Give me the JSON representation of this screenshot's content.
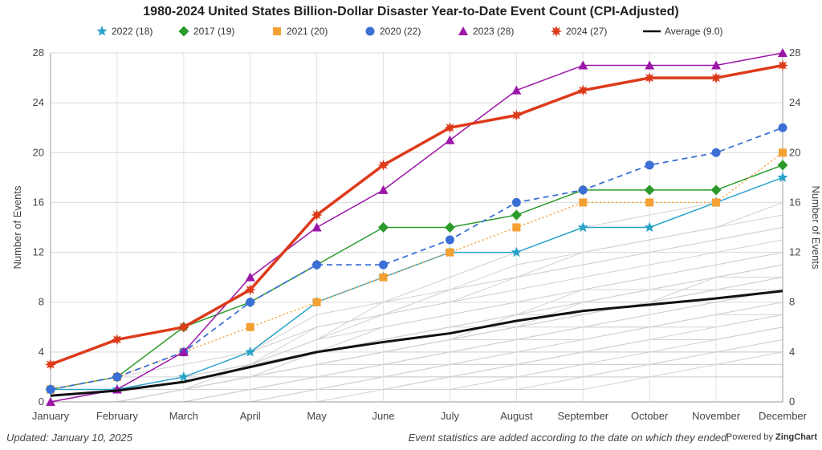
{
  "chart_data": {
    "type": "line",
    "title": "1980-2024 United States Billion-Dollar Disaster Year-to-Date Event Count (CPI-Adjusted)",
    "categories": [
      "January",
      "February",
      "March",
      "April",
      "May",
      "June",
      "July",
      "August",
      "September",
      "October",
      "November",
      "December"
    ],
    "ylabel": "Number of Events",
    "y2label": "Number of Events",
    "ylim": [
      0,
      28
    ],
    "yticks": [
      0,
      4,
      8,
      12,
      16,
      20,
      24,
      28
    ],
    "grid": true,
    "legend_position": "top",
    "series": [
      {
        "name": "2022 (18)",
        "color": "#2aa3c9",
        "marker": "star",
        "style": "solid",
        "width": 1.5,
        "values": [
          1,
          1,
          2,
          4,
          8,
          10,
          12,
          12,
          14,
          14,
          16,
          18
        ]
      },
      {
        "name": "2017 (19)",
        "color": "#2b9a2b",
        "marker": "diamond",
        "style": "solid",
        "width": 1.5,
        "values": [
          1,
          2,
          6,
          8,
          11,
          14,
          14,
          15,
          17,
          17,
          17,
          19
        ]
      },
      {
        "name": "2021 (20)",
        "color": "#f5a033",
        "marker": "square",
        "style": "dotted",
        "width": 1.5,
        "values": [
          1,
          2,
          4,
          6,
          8,
          10,
          12,
          14,
          16,
          16,
          16,
          20
        ]
      },
      {
        "name": "2020 (22)",
        "color": "#3b6fd6",
        "marker": "circle",
        "style": "dashed",
        "width": 1.8,
        "values": [
          1,
          2,
          4,
          8,
          11,
          11,
          13,
          16,
          17,
          19,
          20,
          22
        ]
      },
      {
        "name": "2023 (28)",
        "color": "#9c16a8",
        "marker": "triangle",
        "style": "solid",
        "width": 1.5,
        "values": [
          0,
          1,
          4,
          10,
          14,
          17,
          21,
          25,
          27,
          27,
          27,
          28
        ]
      },
      {
        "name": "2024 (27)",
        "color": "#dd3a1a",
        "marker": "burst",
        "style": "solid",
        "width": 3.5,
        "values": [
          3,
          5,
          6,
          9,
          15,
          19,
          22,
          23,
          25,
          26,
          26,
          27
        ]
      },
      {
        "name": "Average (9.0)",
        "color": "#111111",
        "marker": "none",
        "style": "solid",
        "width": 3,
        "values": [
          0.5,
          0.9,
          1.6,
          2.8,
          4.0,
          4.8,
          5.5,
          6.5,
          7.3,
          7.8,
          8.3,
          8.9
        ]
      }
    ],
    "background_series_color": "#d2d2d2",
    "background_series": [
      [
        0,
        0,
        1,
        2,
        3,
        4,
        5,
        6,
        7,
        8,
        10,
        11
      ],
      [
        0,
        1,
        1,
        2,
        3,
        4,
        5,
        6,
        6,
        7,
        8,
        9
      ],
      [
        1,
        1,
        2,
        3,
        4,
        5,
        6,
        7,
        8,
        9,
        10,
        11
      ],
      [
        0,
        1,
        1,
        3,
        5,
        6,
        7,
        8,
        9,
        10,
        11,
        12
      ],
      [
        1,
        1,
        2,
        3,
        6,
        7,
        8,
        10,
        12,
        13,
        14,
        16
      ],
      [
        0,
        1,
        2,
        2,
        4,
        5,
        6,
        6,
        7,
        8,
        9,
        10
      ],
      [
        0,
        0,
        1,
        1,
        2,
        2,
        3,
        3,
        4,
        5,
        5,
        6
      ],
      [
        0,
        0,
        0,
        1,
        1,
        2,
        2,
        3,
        3,
        4,
        4,
        5
      ],
      [
        0,
        0,
        0,
        0,
        1,
        1,
        1,
        2,
        2,
        2,
        3,
        3
      ],
      [
        0,
        0,
        0,
        1,
        1,
        1,
        2,
        2,
        3,
        3,
        4,
        4
      ],
      [
        0,
        0,
        1,
        1,
        2,
        3,
        3,
        4,
        4,
        5,
        6,
        7
      ],
      [
        0,
        1,
        1,
        2,
        3,
        3,
        4,
        5,
        5,
        6,
        6,
        7
      ],
      [
        1,
        2,
        2,
        3,
        4,
        5,
        6,
        7,
        7,
        8,
        9,
        9
      ],
      [
        0,
        1,
        2,
        4,
        6,
        7,
        8,
        9,
        10,
        11,
        12,
        13
      ],
      [
        0,
        1,
        2,
        3,
        5,
        7,
        9,
        11,
        12,
        13,
        14,
        15
      ],
      [
        0,
        0,
        1,
        3,
        5,
        8,
        10,
        12,
        14,
        15,
        16,
        18
      ],
      [
        0,
        1,
        2,
        4,
        7,
        8,
        9,
        10,
        11,
        12,
        13,
        14
      ],
      [
        1,
        1,
        2,
        2,
        3,
        4,
        4,
        5,
        6,
        6,
        7,
        8
      ],
      [
        0,
        0,
        1,
        2,
        2,
        3,
        4,
        4,
        5,
        6,
        7,
        7
      ],
      [
        0,
        1,
        1,
        2,
        2,
        3,
        3,
        4,
        4,
        5,
        5,
        6
      ],
      [
        0,
        0,
        0,
        1,
        2,
        2,
        3,
        3,
        4,
        4,
        4,
        5
      ],
      [
        0,
        0,
        1,
        1,
        1,
        2,
        2,
        3,
        3,
        3,
        4,
        4
      ],
      [
        1,
        1,
        1,
        2,
        3,
        4,
        5,
        5,
        6,
        6,
        7,
        8
      ],
      [
        0,
        1,
        2,
        3,
        4,
        6,
        7,
        8,
        9,
        9,
        10,
        11
      ],
      [
        0,
        0,
        1,
        2,
        4,
        5,
        6,
        7,
        8,
        9,
        9,
        10
      ],
      [
        0,
        0,
        0,
        0,
        0,
        1,
        1,
        1,
        2,
        2,
        2,
        2
      ],
      [
        0,
        0,
        0,
        0,
        1,
        1,
        1,
        1,
        1,
        2,
        2,
        2
      ],
      [
        0,
        0,
        0,
        1,
        1,
        1,
        2,
        2,
        2,
        3,
        3,
        3
      ],
      [
        0,
        0,
        1,
        1,
        2,
        3,
        4,
        5,
        6,
        7,
        8,
        9
      ],
      [
        1,
        2,
        3,
        4,
        6,
        7,
        9,
        10,
        11,
        12,
        13,
        14
      ],
      [
        0,
        0,
        0,
        1,
        1,
        2,
        2,
        2,
        2,
        3,
        3,
        3
      ],
      [
        0,
        1,
        1,
        1,
        2,
        2,
        3,
        3,
        4,
        4,
        4,
        4
      ],
      [
        0,
        0,
        1,
        1,
        1,
        2,
        2,
        2,
        3,
        3,
        3,
        4
      ],
      [
        0,
        0,
        0,
        0,
        1,
        1,
        2,
        3,
        4,
        4,
        5,
        6
      ],
      [
        0,
        0,
        1,
        2,
        3,
        4,
        5,
        6,
        7,
        8,
        8,
        9
      ],
      [
        0,
        1,
        1,
        2,
        3,
        4,
        5,
        6,
        8,
        9,
        10,
        10
      ],
      [
        1,
        1,
        2,
        3,
        4,
        5,
        6,
        7,
        8,
        8,
        9,
        10
      ],
      [
        0,
        0,
        1,
        2,
        3,
        4,
        5,
        7,
        9,
        10,
        11,
        12
      ]
    ]
  },
  "footer": {
    "updated": "Updated: January 10, 2025",
    "note": "Event statistics are added according to the date on which they ended.",
    "powered_prefix": "Powered by ",
    "powered_brand": "ZingChart"
  }
}
